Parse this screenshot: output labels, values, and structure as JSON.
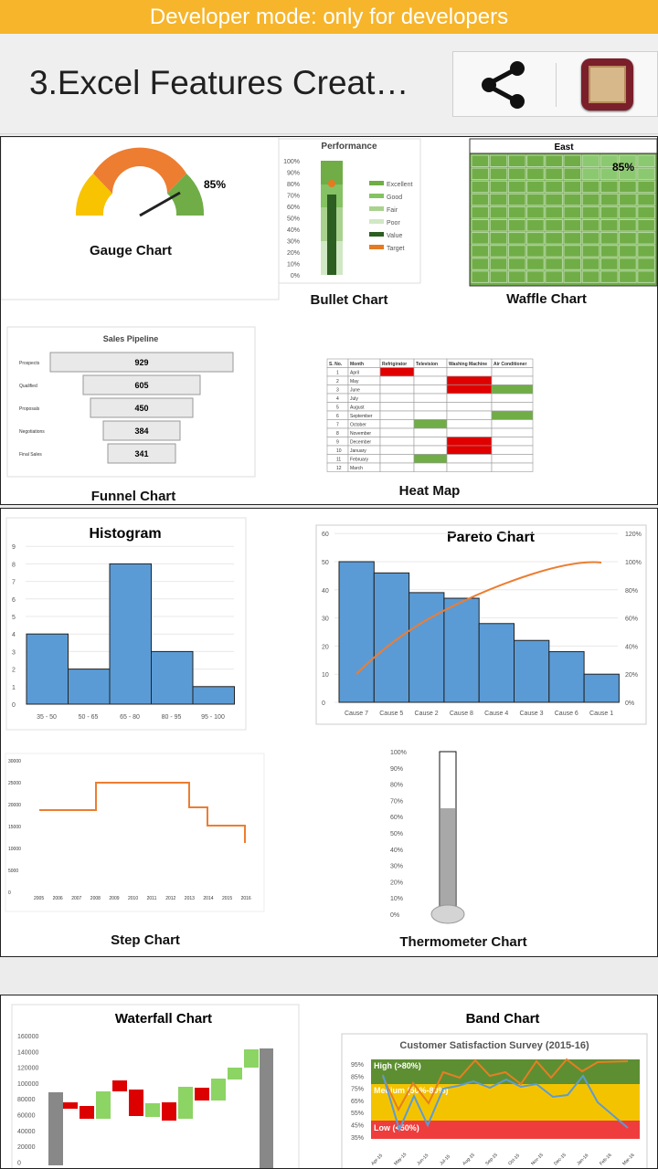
{
  "status": {
    "message": "Developer mode: only for developers"
  },
  "appbar": {
    "title": "3.Excel Features Creat…",
    "share_icon": "share-icon",
    "app_icon": "app-icon"
  },
  "labels": {
    "gauge": "Gauge Chart",
    "gauge_value": "85%",
    "bullet": "Bullet Chart",
    "performance": "Performance",
    "waffle": "Waffle Chart",
    "waffle_title": "East",
    "waffle_value": "85%",
    "funnel": "Funnel Chart",
    "funnel_title": "Sales Pipeline",
    "heat": "Heat Map",
    "histogram": "Histogram",
    "pareto": "Pareto Chart",
    "step": "Step Chart",
    "thermometer": "Thermometer Chart",
    "waterfall": "Waterfall Chart",
    "band": "Band Chart",
    "band_subtitle": "Customer Satisfaction Survey (2015-16)",
    "band_high": "High (>80%)",
    "band_medium": "Medium (50%-80%)",
    "band_low": "Low (<50%)"
  },
  "bullet": {
    "ticks": [
      "100%",
      "90%",
      "80%",
      "70%",
      "60%",
      "50%",
      "40%",
      "30%",
      "20%",
      "10%",
      "0%"
    ],
    "legend": [
      "Excellent",
      "Good",
      "Fair",
      "Poor",
      "Value",
      "Target"
    ]
  },
  "funnel": {
    "stages": [
      "Prospects",
      "Qualified",
      "Proposals",
      "Negotiations",
      "Final Sales"
    ],
    "values": [
      929,
      605,
      450,
      384,
      341
    ]
  },
  "heatmap": {
    "headers": [
      "S. No.",
      "Month",
      "Refrigirator",
      "Television",
      "Washing Machine",
      "Air Conditioner"
    ],
    "months": [
      "April",
      "May",
      "June",
      "July",
      "August",
      "September",
      "October",
      "November",
      "December",
      "January",
      "February",
      "March"
    ]
  },
  "chart_data": [
    {
      "type": "bar",
      "title": "Histogram",
      "categories": [
        "35 - 50",
        "50 - 65",
        "65 - 80",
        "80 - 95",
        "95 - 100"
      ],
      "values": [
        4,
        2,
        8,
        3,
        1
      ],
      "ylim": [
        0,
        9
      ]
    },
    {
      "type": "bar",
      "title": "Pareto Chart",
      "categories": [
        "Cause 7",
        "Cause 5",
        "Cause 2",
        "Cause 8",
        "Cause 4",
        "Cause 3",
        "Cause 6",
        "Cause 1"
      ],
      "values": [
        50,
        46,
        39,
        37,
        28,
        22,
        18,
        10
      ],
      "ylim": [
        0,
        60
      ],
      "y2_ticks": [
        "0%",
        "20%",
        "40%",
        "60%",
        "80%",
        "100%",
        "120%"
      ]
    },
    {
      "type": "line",
      "title": "Step Chart",
      "x": [
        "2005",
        "2006",
        "2007",
        "2008",
        "2009",
        "2010",
        "2011",
        "2012",
        "2013",
        "2014",
        "2015",
        "2016"
      ],
      "y_ticks": [
        "30000",
        "25000",
        "20000",
        "15000",
        "10000",
        "5000",
        "0"
      ]
    },
    {
      "type": "bar",
      "title": "Thermometer Chart",
      "y_ticks": [
        "100%",
        "90%",
        "80%",
        "70%",
        "60%",
        "50%",
        "40%",
        "30%",
        "20%",
        "10%",
        "0%"
      ],
      "values": [
        65
      ]
    },
    {
      "type": "bar",
      "title": "Waterfall Chart",
      "y_ticks": [
        "160000",
        "140000",
        "120000",
        "100000",
        "80000",
        "60000",
        "40000",
        "20000",
        "0"
      ]
    },
    {
      "type": "line",
      "title": "Band Chart",
      "x": [
        "Apr-15",
        "May-15",
        "Jun-15",
        "Jul-15",
        "Aug-15",
        "Sep-15",
        "Oct-15",
        "Nov-15",
        "Dec-15",
        "Jan-16",
        "Feb-16",
        "Mar-16"
      ],
      "y_ticks": [
        "95%",
        "85%",
        "75%",
        "65%",
        "55%",
        "45%",
        "35%"
      ]
    }
  ],
  "colors": {
    "orange": "#f6b52b",
    "blue": "#5b9bd5",
    "green": "#70ad47",
    "red": "#e00000"
  }
}
